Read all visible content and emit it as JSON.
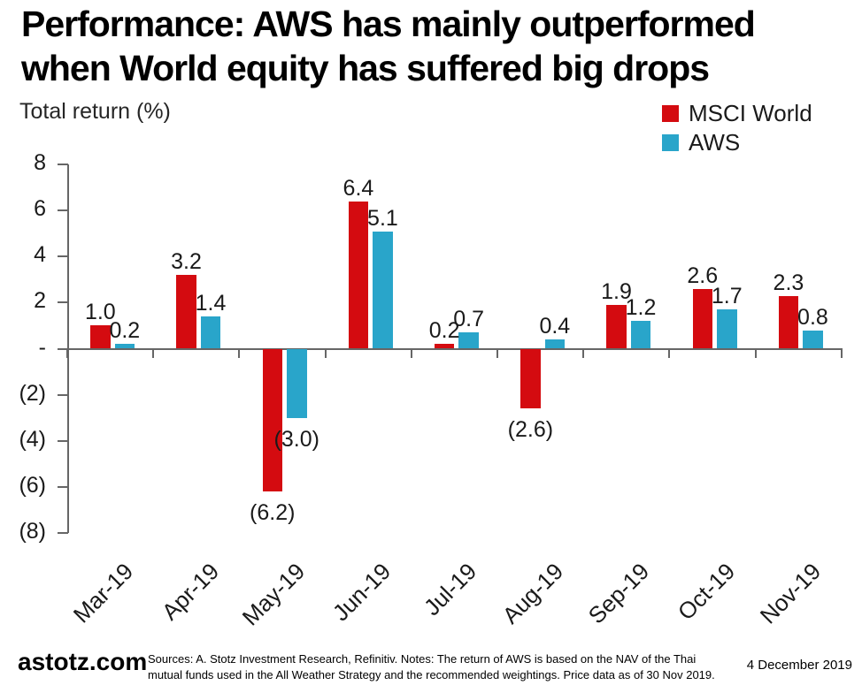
{
  "title": {
    "line1": "Performance: AWS has mainly outperformed",
    "line2": "when World equity has suffered big drops"
  },
  "legend": [
    {
      "label": "MSCI World",
      "color": "#d40b10"
    },
    {
      "label": "AWS",
      "color": "#29a5ca"
    }
  ],
  "chart_data": {
    "type": "bar",
    "title": "Performance: AWS has mainly outperformed when World equity has suffered big drops",
    "ylabel": "Total return (%)",
    "categories": [
      "Mar-19",
      "Apr-19",
      "May-19",
      "Jun-19",
      "Jul-19",
      "Aug-19",
      "Sep-19",
      "Oct-19",
      "Nov-19"
    ],
    "series": [
      {
        "name": "MSCI World",
        "color": "#d40b10",
        "values": [
          1.0,
          3.2,
          -6.2,
          6.4,
          0.2,
          -2.6,
          1.9,
          2.6,
          2.3
        ]
      },
      {
        "name": "AWS",
        "color": "#29a5ca",
        "values": [
          0.2,
          1.4,
          -3.0,
          5.1,
          0.7,
          0.4,
          1.2,
          1.7,
          0.8
        ]
      }
    ],
    "ylim": [
      -8,
      8
    ],
    "yticks": [
      {
        "value": 8,
        "label": "8"
      },
      {
        "value": 6,
        "label": "6"
      },
      {
        "value": 4,
        "label": "4"
      },
      {
        "value": 2,
        "label": "2"
      },
      {
        "value": 0,
        "label": "-"
      },
      {
        "value": -2,
        "label": "(2)"
      },
      {
        "value": -4,
        "label": "(4)"
      },
      {
        "value": -6,
        "label": "(6)"
      },
      {
        "value": -8,
        "label": "(8)"
      }
    ],
    "value_label_format": "one-decimal, negatives in parentheses",
    "grid": "off",
    "legend_position": "top-right"
  },
  "footer": {
    "brand": "astotz.com",
    "sources_note": "Sources: A. Stotz Investment Research, Refinitiv. Notes: The return of AWS is based on the NAV of the Thai mutual funds used in the All Weather Strategy and the recommended weightings. Price data as of 30 Nov 2019.",
    "date": "4 December 2019"
  }
}
